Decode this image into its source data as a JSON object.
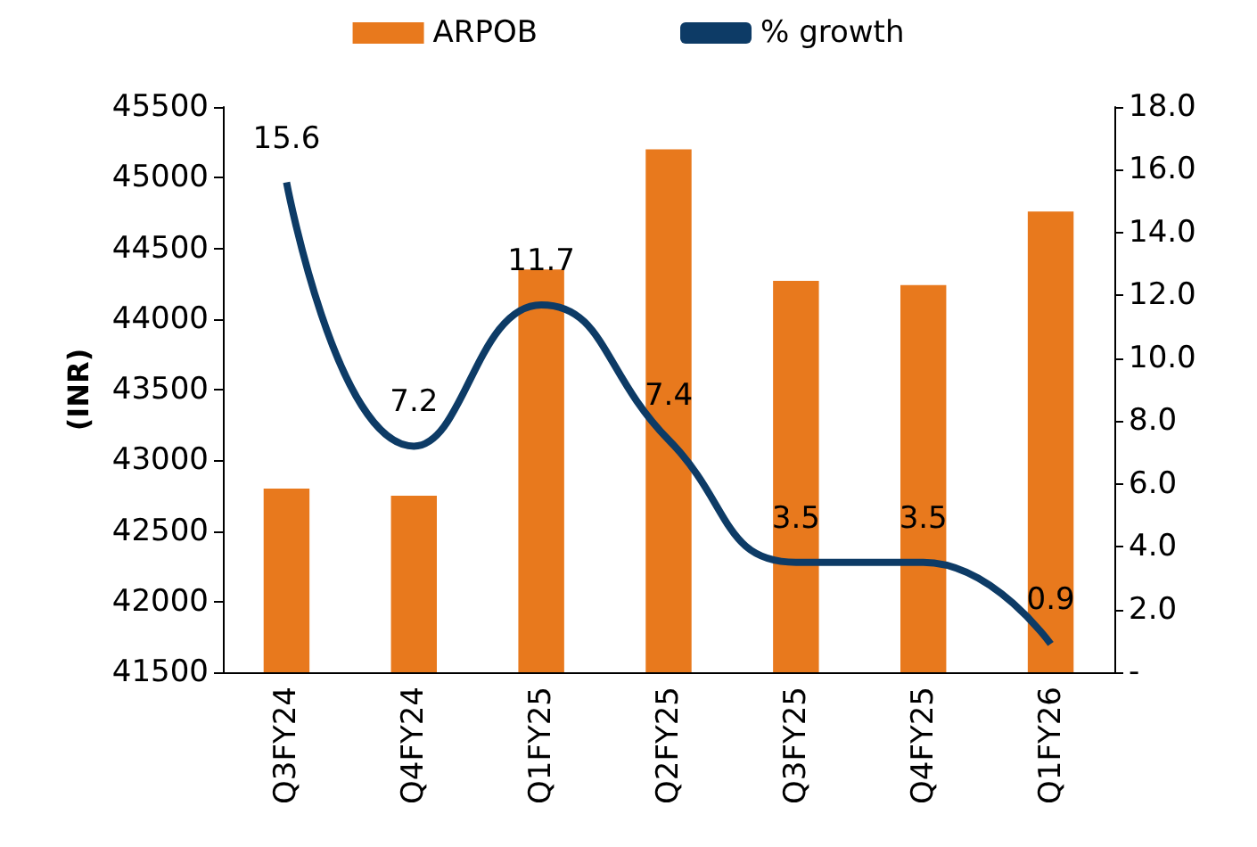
{
  "chart_data": {
    "type": "bar",
    "ylabel": "(INR)",
    "categories": [
      "Q3FY24",
      "Q4FY24",
      "Q1FY25",
      "Q2FY25",
      "Q3FY25",
      "Q4FY25",
      "Q1FY26"
    ],
    "series": [
      {
        "name": "ARPOB",
        "color": "#e8791d",
        "values": [
          42800,
          42750,
          44350,
          45200,
          44270,
          44240,
          44760
        ]
      },
      {
        "name": "% growth",
        "type": "line",
        "axis": "y2",
        "color": "#0d3b66",
        "values": [
          15.6,
          7.2,
          11.7,
          7.4,
          3.5,
          3.5,
          0.9
        ],
        "data_labels": true
      }
    ],
    "ylim": [
      41500,
      45500
    ],
    "yticks": [
      41500,
      42000,
      42500,
      43000,
      43500,
      44000,
      44500,
      45000,
      45500
    ],
    "y2lim": [
      0,
      18
    ],
    "y2ticks": [
      {
        "value": 0,
        "label": "-"
      },
      {
        "value": 2,
        "label": "2.0"
      },
      {
        "value": 4,
        "label": "4.0"
      },
      {
        "value": 6,
        "label": "6.0"
      },
      {
        "value": 8,
        "label": "8.0"
      },
      {
        "value": 10,
        "label": "10.0"
      },
      {
        "value": 12,
        "label": "12.0"
      },
      {
        "value": 14,
        "label": "14.0"
      },
      {
        "value": 16,
        "label": "16.0"
      },
      {
        "value": 18,
        "label": "18.0"
      }
    ],
    "grid": false,
    "legend": "top",
    "marker": "none"
  }
}
